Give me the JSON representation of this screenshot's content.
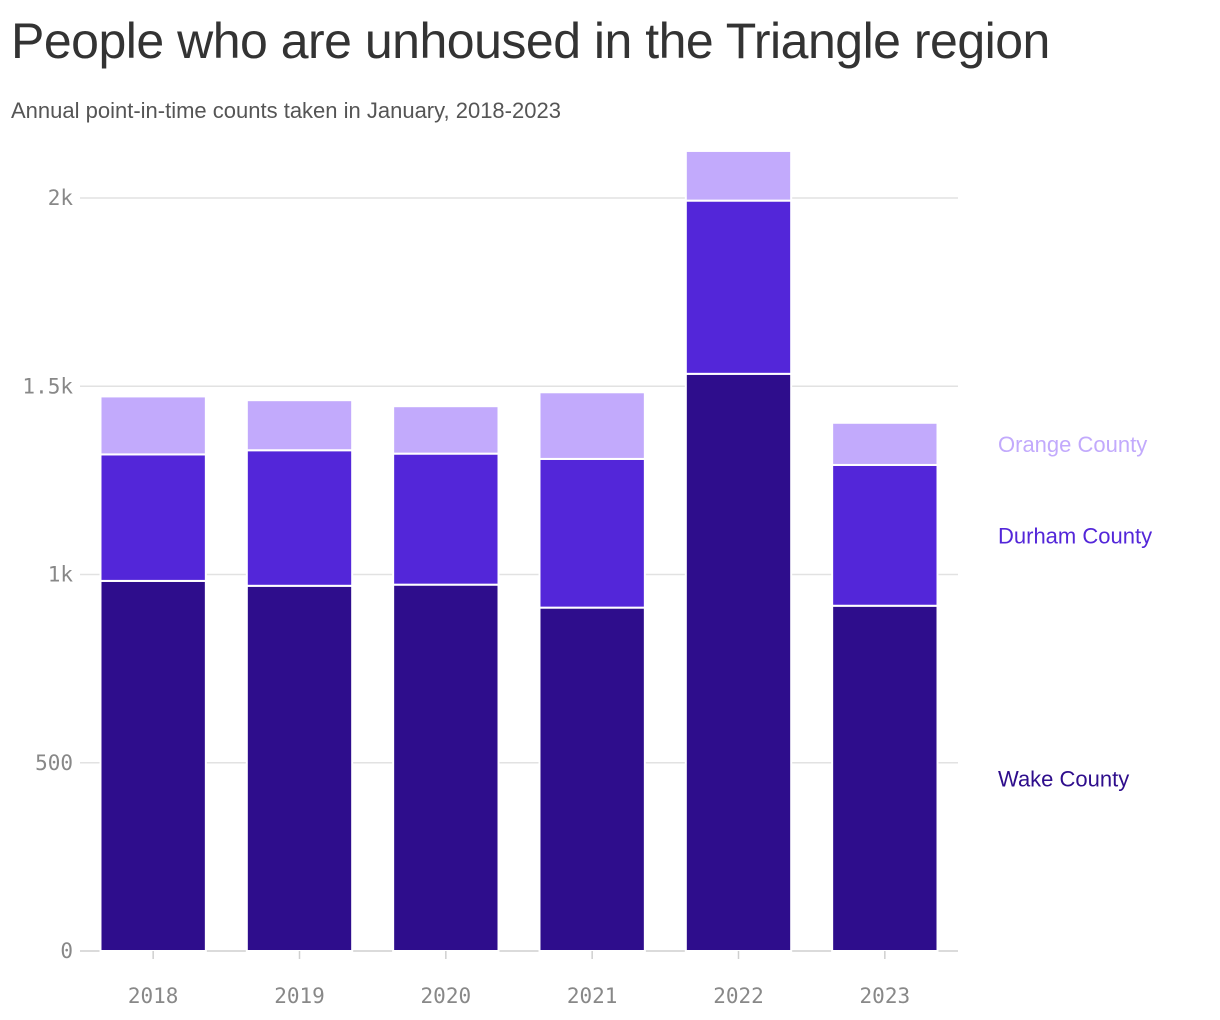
{
  "title": "People who are unhoused in the Triangle region",
  "subtitle": "Annual point-in-time counts taken in January, 2018-2023",
  "chart_data": {
    "type": "bar",
    "stacked": true,
    "categories": [
      "2018",
      "2019",
      "2020",
      "2021",
      "2022",
      "2023"
    ],
    "series": [
      {
        "name": "Wake County",
        "color": "#2e0d8c",
        "values": [
          983,
          970,
          973,
          912,
          1533,
          917
        ]
      },
      {
        "name": "Durham County",
        "color": "#5326d9",
        "values": [
          336,
          360,
          348,
          395,
          460,
          374
        ]
      },
      {
        "name": "Orange County",
        "color": "#c2aafc",
        "values": [
          154,
          133,
          126,
          177,
          132,
          112
        ]
      }
    ],
    "ylim": [
      0,
      2000
    ],
    "yticks": [
      0,
      500,
      1000,
      1500,
      2000
    ],
    "ytick_labels": [
      "0",
      "500",
      "1k",
      "1.5k",
      "2k"
    ],
    "grid": true,
    "legend": "right, inline labels"
  }
}
